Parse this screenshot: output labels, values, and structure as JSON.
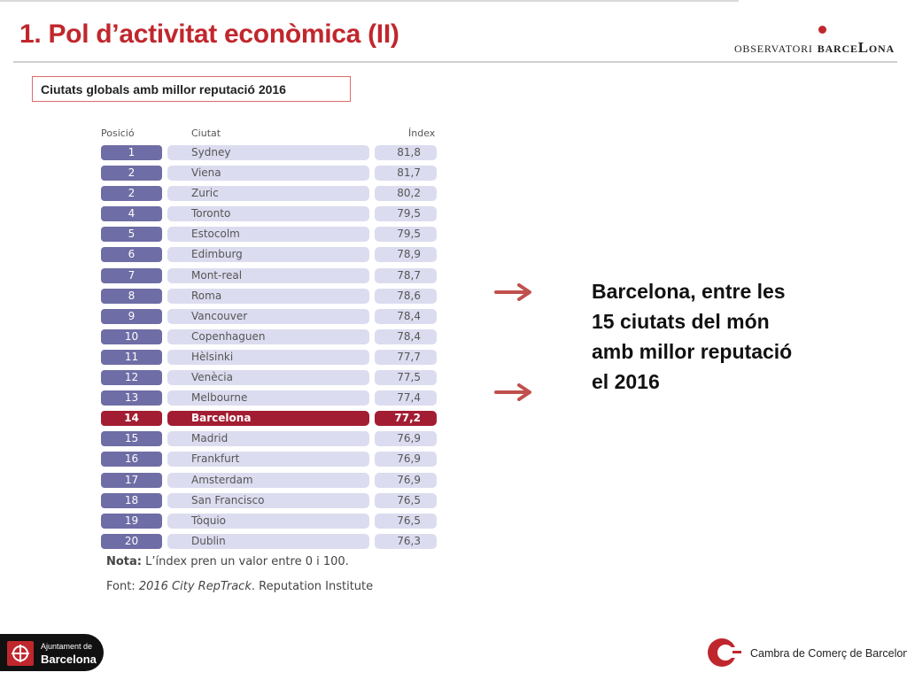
{
  "header": {
    "title": "1. Pol d’activitat econòmica (II)",
    "logo_observatori": "observatori",
    "logo_barcelona": "barceLona"
  },
  "subtitle": "Ciutats globals amb millor reputació 2016",
  "table": {
    "headers": {
      "position": "Posició",
      "city": "Ciutat",
      "index": "Índex"
    },
    "rows": [
      {
        "pos": "1",
        "city": "Sydney",
        "index": "81,8"
      },
      {
        "pos": "2",
        "city": "Viena",
        "index": "81,7"
      },
      {
        "pos": "2",
        "city": "Zuric",
        "index": "80,2"
      },
      {
        "pos": "4",
        "city": "Toronto",
        "index": "79,5"
      },
      {
        "pos": "5",
        "city": "Estocolm",
        "index": "79,5"
      },
      {
        "pos": "6",
        "city": "Edimburg",
        "index": "78,9"
      },
      {
        "pos": "7",
        "city": "Mont-real",
        "index": "78,7"
      },
      {
        "pos": "8",
        "city": "Roma",
        "index": "78,6"
      },
      {
        "pos": "9",
        "city": "Vancouver",
        "index": "78,4"
      },
      {
        "pos": "10",
        "city": "Copenhaguen",
        "index": "78,4"
      },
      {
        "pos": "11",
        "city": "Hèlsinki",
        "index": "77,7"
      },
      {
        "pos": "12",
        "city": "Venècia",
        "index": "77,5"
      },
      {
        "pos": "13",
        "city": "Melbourne",
        "index": "77,4"
      },
      {
        "pos": "14",
        "city": "Barcelona",
        "index": "77,2",
        "highlight": true
      },
      {
        "pos": "15",
        "city": "Madrid",
        "index": "76,9"
      },
      {
        "pos": "16",
        "city": "Frankfurt",
        "index": "76,9"
      },
      {
        "pos": "17",
        "city": "Amsterdam",
        "index": "76,9"
      },
      {
        "pos": "18",
        "city": "San Francisco",
        "index": "76,5"
      },
      {
        "pos": "19",
        "city": "Tòquio",
        "index": "76,5"
      },
      {
        "pos": "20",
        "city": "Dublin",
        "index": "76,3"
      }
    ],
    "note_label": "Nota:",
    "note_text": " L’índex pren un valor entre 0 i 100.",
    "source_label": "Font: ",
    "source_title": "2016 City RepTrack",
    "source_rest": ". Reputation Institute"
  },
  "callout": "Barcelona, entre les 15 ciutats del món amb millor reputació el 2016",
  "footer": {
    "ajuntament_line1": "Ajuntament de",
    "ajuntament_line2": "Barcelona",
    "cambra": "Cambra de Comerç de Barcelona"
  },
  "colors": {
    "accent": "#c0272d",
    "row_purple": "#6f6da5",
    "row_light": "#dcdcf0",
    "highlight": "#a31d32"
  }
}
